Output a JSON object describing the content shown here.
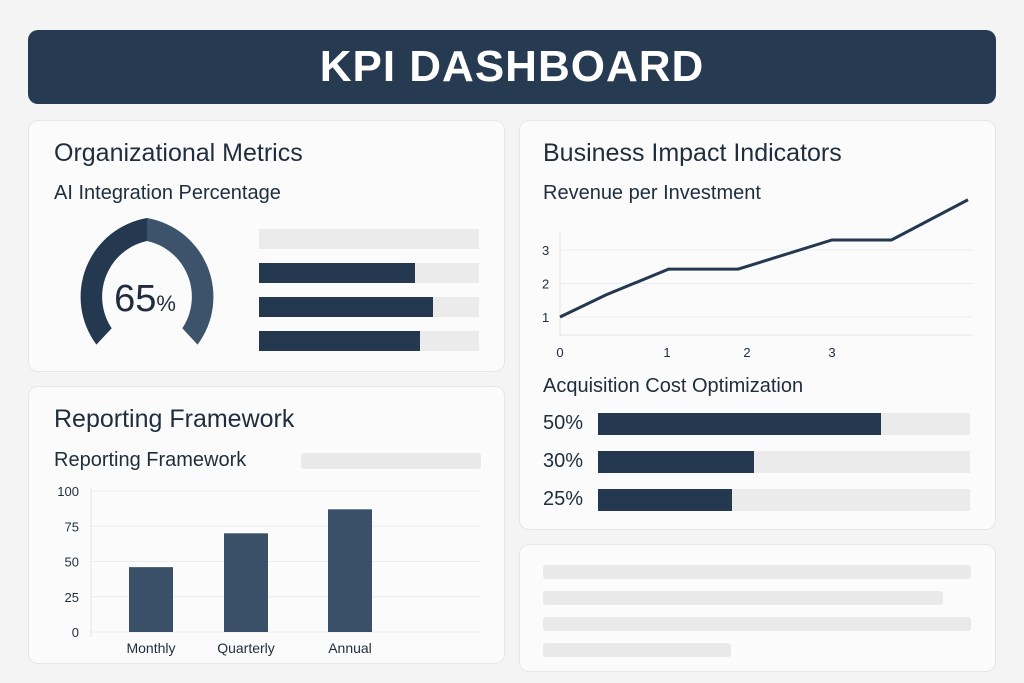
{
  "header": {
    "title": "KPI DASHBOARD"
  },
  "org": {
    "title": "Organizational Metrics",
    "subtitle": "AI Integration Percentage",
    "gauge": {
      "value": 65,
      "label": "65",
      "unit": "%"
    },
    "bars": [
      0,
      0.71,
      0.79,
      0.73
    ]
  },
  "reporting": {
    "title": "Reporting Framework",
    "subtitle": "Reporting Framework"
  },
  "business": {
    "title": "Business Impact Indicators",
    "subtitle": "Revenue per Investment",
    "acq_title": "Acquisition Cost Optimization",
    "acq": [
      {
        "label": "50%",
        "fill": 0.76
      },
      {
        "label": "30%",
        "fill": 0.42
      },
      {
        "label": "25%",
        "fill": 0.36
      }
    ]
  },
  "colors": {
    "primary": "#243850",
    "secondary": "#3c536b",
    "track": "#ebebeb"
  },
  "chart_data": [
    {
      "type": "line",
      "title": "Revenue per Investment",
      "x": [
        0,
        0.43,
        1.02,
        1.89,
        3,
        3.7,
        4.6
      ],
      "y": [
        1,
        1.66,
        2.43,
        2.43,
        3.3,
        3.3,
        4.5
      ],
      "xticks": [
        "0",
        "1",
        "2",
        "3"
      ],
      "yticks": [
        "1",
        "2",
        "3"
      ],
      "grid": true
    },
    {
      "type": "bar",
      "title": "Reporting Framework",
      "categories": [
        "Monthly",
        "Quarterly",
        "Annual"
      ],
      "values": [
        46,
        70,
        87
      ],
      "yticks": [
        "0",
        "25",
        "50",
        "75",
        "100"
      ],
      "ylim": [
        0,
        100
      ],
      "grid": true
    }
  ]
}
